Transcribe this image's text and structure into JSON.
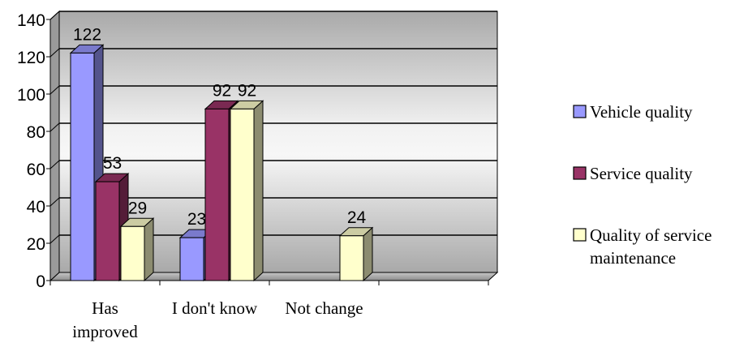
{
  "chart_data": {
    "type": "bar",
    "title": "",
    "xlabel": "",
    "ylabel": "",
    "ylim": [
      0,
      140
    ],
    "yticks": [
      0,
      20,
      40,
      60,
      80,
      100,
      120,
      140
    ],
    "grid": true,
    "legend_position": "right",
    "categories": [
      [
        "Has",
        "improved"
      ],
      [
        "I don't know"
      ],
      [
        "Not change"
      ]
    ],
    "series": [
      {
        "name": "Vehicle quality",
        "values": [
          122,
          23,
          null
        ],
        "color": "#9999ff"
      },
      {
        "name": "Service quality",
        "values": [
          53,
          92,
          null
        ],
        "color": "#993366"
      },
      {
        "name": "Quality of service maintenance",
        "values": [
          29,
          92,
          24
        ],
        "color": "#ffffcc",
        "legend_lines": [
          "Quality of service",
          "maintenance"
        ]
      }
    ]
  }
}
